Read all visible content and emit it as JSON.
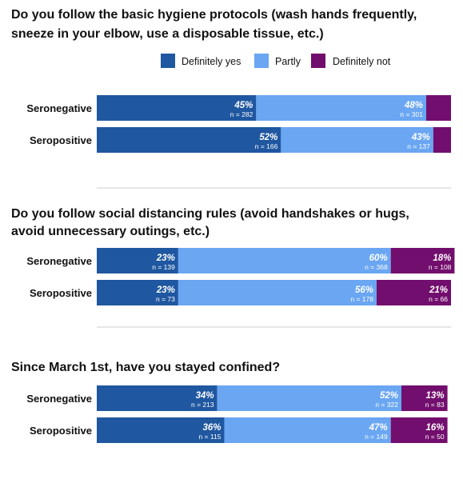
{
  "legend": [
    {
      "label": "Definitely yes",
      "color": "#1f57a0"
    },
    {
      "label": "Partly",
      "color": "#6aa6f2"
    },
    {
      "label": "Definitely not",
      "color": "#720e6d"
    }
  ],
  "chart_data": [
    {
      "type": "bar",
      "stacked": true,
      "orientation": "horizontal",
      "title_lines": [
        "Do you follow the basic hygiene protocols (wash hands frequently,",
        "sneeze in your elbow, use a disposable tissue, etc.)"
      ],
      "categories": [
        "Seronegative",
        "Seropositive"
      ],
      "series": [
        {
          "name": "Definitely yes",
          "values": [
            45,
            52
          ],
          "value_labels": [
            "45%",
            "52%"
          ],
          "n_labels": [
            "n = 282",
            "n = 166"
          ]
        },
        {
          "name": "Partly",
          "values": [
            48,
            43
          ],
          "value_labels": [
            "48%",
            "43%"
          ],
          "n_labels": [
            "n = 301",
            "n = 137"
          ]
        },
        {
          "name": "Definitely not",
          "values": [
            7,
            5
          ],
          "value_labels": [
            "",
            ""
          ],
          "n_labels": [
            "",
            ""
          ]
        }
      ],
      "xlim": [
        0,
        100
      ]
    },
    {
      "type": "bar",
      "stacked": true,
      "orientation": "horizontal",
      "title_lines": [
        "Do you follow social distancing rules (avoid handshakes or hugs,",
        "avoid unnecessary outings, etc.)"
      ],
      "categories": [
        "Seronegative",
        "Seropositive"
      ],
      "series": [
        {
          "name": "Definitely yes",
          "values": [
            23,
            23
          ],
          "value_labels": [
            "23%",
            "23%"
          ],
          "n_labels": [
            "n = 139",
            "n = 73"
          ]
        },
        {
          "name": "Partly",
          "values": [
            60,
            56
          ],
          "value_labels": [
            "60%",
            "56%"
          ],
          "n_labels": [
            "n = 368",
            "n = 178"
          ]
        },
        {
          "name": "Definitely not",
          "values": [
            18,
            21
          ],
          "value_labels": [
            "18%",
            "21%"
          ],
          "n_labels": [
            "n = 108",
            "n = 66"
          ]
        }
      ],
      "xlim": [
        0,
        100
      ]
    },
    {
      "type": "bar",
      "stacked": true,
      "orientation": "horizontal",
      "title_lines": [
        "Since March 1st, have you stayed confined?"
      ],
      "categories": [
        "Seronegative",
        "Seropositive"
      ],
      "series": [
        {
          "name": "Definitely yes",
          "values": [
            34,
            36
          ],
          "value_labels": [
            "34%",
            "36%"
          ],
          "n_labels": [
            "n = 213",
            "n = 115"
          ]
        },
        {
          "name": "Partly",
          "values": [
            52,
            47
          ],
          "value_labels": [
            "52%",
            "47%"
          ],
          "n_labels": [
            "n = 322",
            "n = 149"
          ]
        },
        {
          "name": "Definitely not",
          "values": [
            13,
            16
          ],
          "value_labels": [
            "13%",
            "16%"
          ],
          "n_labels": [
            "n = 83",
            "n = 50"
          ]
        }
      ],
      "xlim": [
        0,
        100
      ]
    }
  ]
}
